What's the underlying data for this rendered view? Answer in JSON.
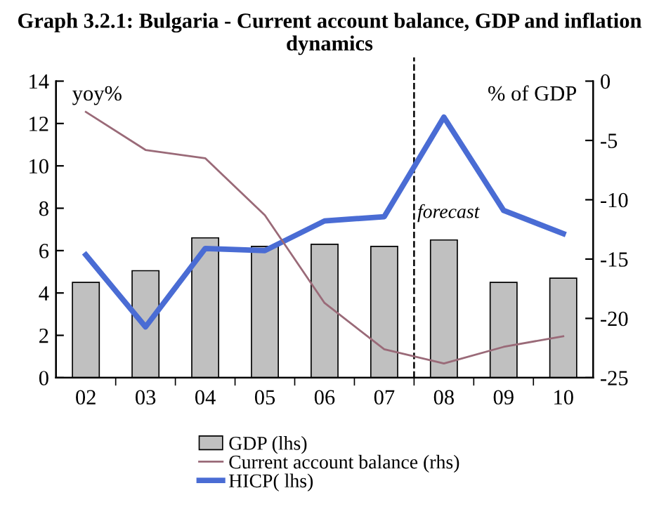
{
  "chart_data": {
    "type": "bar",
    "title": "Graph 3.2.1: Bulgaria - Current account balance, GDP and inflation dynamics",
    "ylabel": "yoy%",
    "y2label": "% of GDP",
    "categories": [
      "02",
      "03",
      "04",
      "05",
      "06",
      "07",
      "08",
      "09",
      "10"
    ],
    "series": [
      {
        "name": "GDP (lhs)",
        "color": "#c0c0c0",
        "values": [
          4.5,
          5.05,
          6.6,
          6.2,
          6.3,
          6.2,
          6.5,
          4.5,
          4.7
        ]
      },
      {
        "name": "Current account balance (rhs)",
        "type": "line",
        "axis": "y2",
        "color": "#9a6a78",
        "values": [
          -2.6,
          -5.8,
          -6.5,
          -11.3,
          -18.7,
          -22.6,
          -23.8,
          -22.4,
          -21.5
        ]
      },
      {
        "name": "HICP( lhs)",
        "type": "line",
        "color": "#4a6cd4",
        "values": [
          5.8,
          2.4,
          6.1,
          6.0,
          7.4,
          7.6,
          12.3,
          7.9,
          6.8
        ]
      }
    ],
    "ylim": [
      0,
      14
    ],
    "yticks": [
      0,
      2,
      4,
      6,
      8,
      10,
      12,
      14
    ],
    "y2lim": [
      -25,
      0
    ],
    "y2ticks": [
      -25,
      -20,
      -15,
      -10,
      -5,
      0
    ],
    "annotations": [
      "forecast"
    ],
    "legend": "bottom",
    "grid": false
  }
}
